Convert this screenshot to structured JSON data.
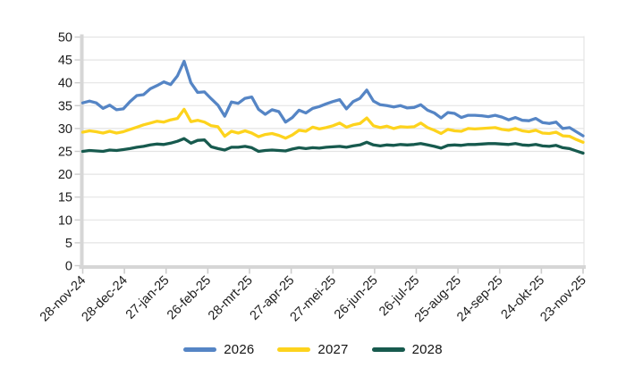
{
  "figure": {
    "background": "#ffffff",
    "text_color": "#1b1b1b",
    "axis_bar_color": "#d6d6d6",
    "grid_color": "#e4e4e4",
    "tick_color": "#cccccc"
  },
  "chart_data": {
    "type": "line",
    "title": "",
    "xlabel": "",
    "ylabel": "",
    "ylim": [
      0,
      50
    ],
    "y_step": 5,
    "y_tick_labels": [
      "0",
      "5",
      "10",
      "15",
      "20",
      "25",
      "30",
      "35",
      "40",
      "45",
      "50"
    ],
    "x_tick_labels": [
      "28-nov-24",
      "28-dec-24",
      "27-jan-25",
      "26-feb-25",
      "28-mrt-25",
      "27-apr-25",
      "27-mei-25",
      "26-jun-25",
      "26-jul-25",
      "25-aug-25",
      "24-sep-25",
      "24-okt-25",
      "23-nov-25"
    ],
    "grid": "horizontal",
    "legend_position": "bottom",
    "series": [
      {
        "name": "2026",
        "color": "#5585c5",
        "values": [
          35.6,
          36.0,
          35.6,
          34.4,
          35.1,
          34.1,
          34.3,
          35.9,
          37.2,
          37.4,
          38.7,
          39.4,
          40.2,
          39.6,
          41.5,
          44.7,
          40.0,
          37.9,
          38.0,
          36.5,
          35.1,
          32.7,
          35.8,
          35.5,
          36.6,
          36.9,
          34.2,
          33.1,
          34.1,
          33.7,
          31.4,
          32.4,
          34.0,
          33.4,
          34.4,
          34.8,
          35.4,
          35.9,
          36.3,
          34.3,
          35.9,
          36.6,
          38.4,
          36.0,
          35.2,
          35.0,
          34.7,
          35.0,
          34.5,
          34.6,
          35.2,
          34.0,
          33.4,
          32.3,
          33.5,
          33.3,
          32.4,
          32.9,
          32.9,
          32.8,
          32.6,
          32.9,
          32.5,
          31.9,
          32.4,
          31.8,
          31.7,
          32.2,
          31.3,
          31.1,
          31.4,
          30.0,
          30.2,
          29.3,
          28.4
        ]
      },
      {
        "name": "2027",
        "color": "#fdd31d",
        "values": [
          29.2,
          29.5,
          29.3,
          29.0,
          29.4,
          29.0,
          29.3,
          29.8,
          30.3,
          30.8,
          31.2,
          31.6,
          31.4,
          31.9,
          32.2,
          34.2,
          31.5,
          31.8,
          31.4,
          30.6,
          30.4,
          28.3,
          29.4,
          29.0,
          29.5,
          29.0,
          28.2,
          28.7,
          28.9,
          28.5,
          27.9,
          28.6,
          29.6,
          29.4,
          30.3,
          29.9,
          30.2,
          30.6,
          31.2,
          30.3,
          30.8,
          31.1,
          32.3,
          30.6,
          30.2,
          30.5,
          30.0,
          30.4,
          30.3,
          30.4,
          31.2,
          30.2,
          29.6,
          28.9,
          29.8,
          29.5,
          29.4,
          30.0,
          29.9,
          30.0,
          30.1,
          30.2,
          29.8,
          29.6,
          30.0,
          29.5,
          29.3,
          29.6,
          29.0,
          28.9,
          29.2,
          28.4,
          28.3,
          27.6,
          27.0
        ]
      },
      {
        "name": "2028",
        "color": "#175a4e",
        "values": [
          25.0,
          25.2,
          25.1,
          25.0,
          25.3,
          25.2,
          25.4,
          25.6,
          25.9,
          26.1,
          26.4,
          26.6,
          26.5,
          26.8,
          27.2,
          27.8,
          26.8,
          27.4,
          27.5,
          26.0,
          25.6,
          25.3,
          25.9,
          25.9,
          26.1,
          25.8,
          25.0,
          25.2,
          25.3,
          25.2,
          25.1,
          25.5,
          25.8,
          25.6,
          25.8,
          25.7,
          25.9,
          26.0,
          26.1,
          25.9,
          26.2,
          26.4,
          27.0,
          26.4,
          26.2,
          26.4,
          26.3,
          26.5,
          26.4,
          26.5,
          26.7,
          26.4,
          26.1,
          25.7,
          26.3,
          26.4,
          26.3,
          26.5,
          26.5,
          26.6,
          26.7,
          26.7,
          26.6,
          26.5,
          26.7,
          26.4,
          26.3,
          26.5,
          26.2,
          26.1,
          26.3,
          25.8,
          25.6,
          25.1,
          24.6
        ]
      }
    ]
  }
}
